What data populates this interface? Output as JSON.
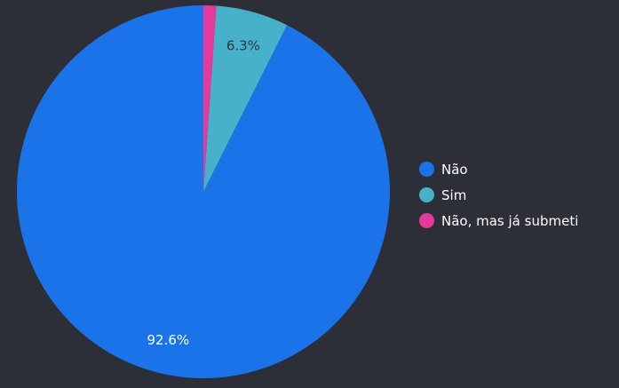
{
  "chart_data": {
    "type": "pie",
    "categories": [
      "Não",
      "Sim",
      "Não, mas já submeti"
    ],
    "values": [
      92.6,
      6.3,
      1.1
    ],
    "data_labels": [
      "92.6%",
      "6.3%",
      ""
    ],
    "colors": [
      "#1a73e8",
      "#46b1c9",
      "#e6399b"
    ],
    "legend_position": "right",
    "title": ""
  },
  "colors": {
    "background": "#2d2f38",
    "legend_text": "#ffffff",
    "label_dark": "#2d3540",
    "label_light": "#ffffff"
  }
}
